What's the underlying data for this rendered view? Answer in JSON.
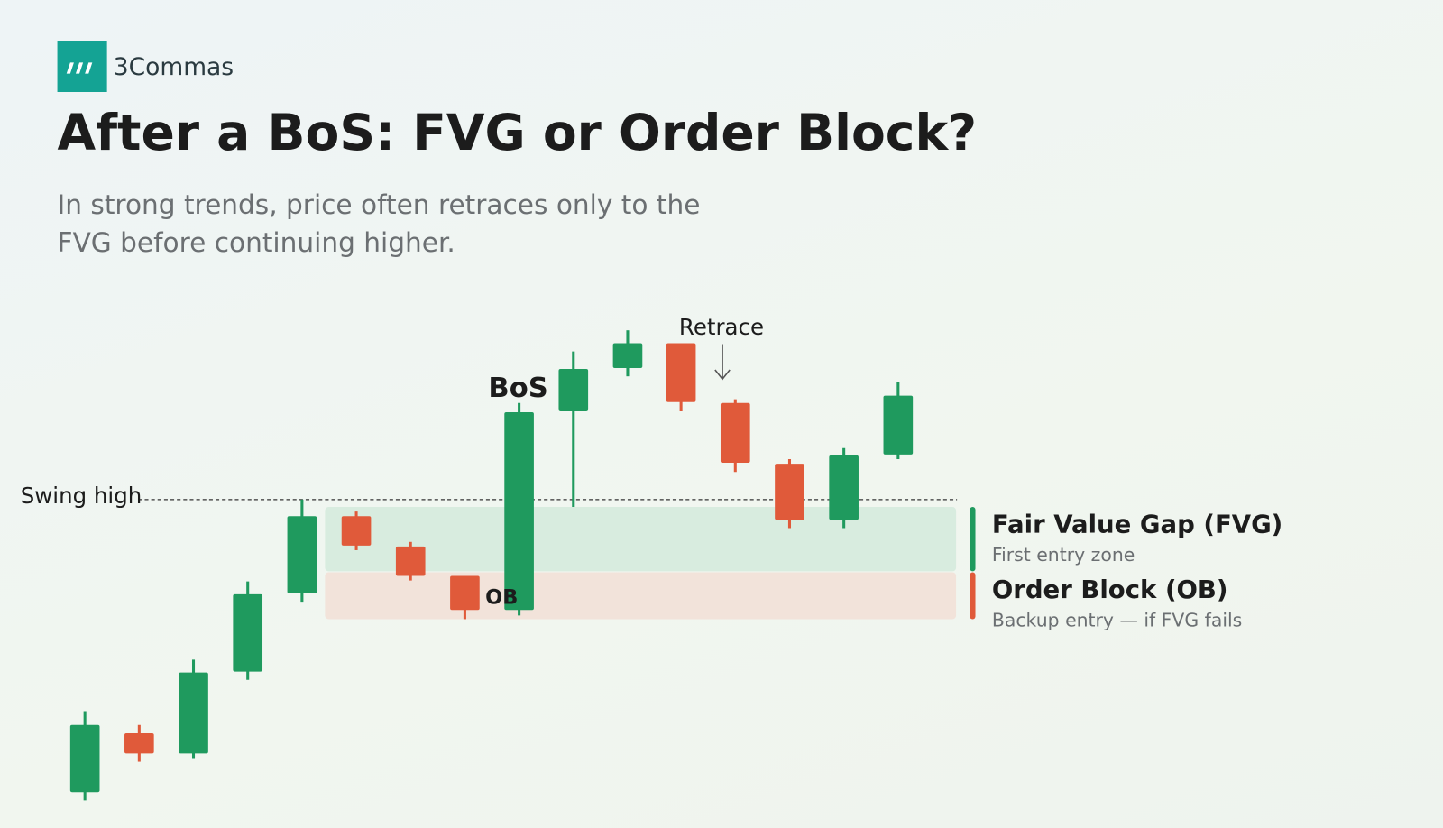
{
  "brand": "3Commas",
  "title": "After a BoS: FVG or Order Block?",
  "subtitle": [
    "In strong trends, price often retraces only to the",
    "FVG before continuing higher."
  ],
  "annotations": {
    "swing_high": "Swing high",
    "bos": "BoS",
    "retrace": "Retrace",
    "ob": "OB"
  },
  "legend": [
    {
      "title": "Fair Value Gap (FVG)",
      "caption": "First entry zone"
    },
    {
      "title": "Order Block (OB)",
      "caption": "Backup entry — if FVG fails"
    }
  ]
}
